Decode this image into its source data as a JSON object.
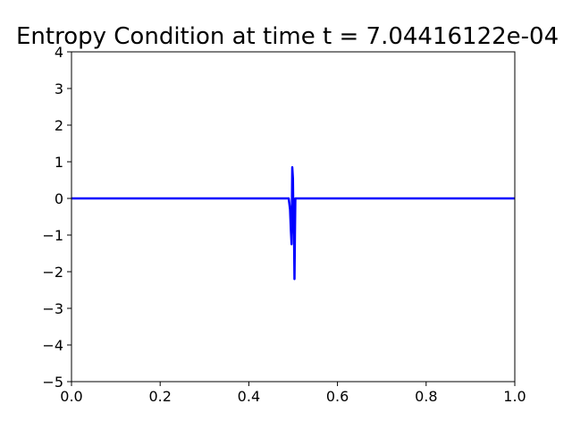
{
  "chart_data": {
    "type": "line",
    "title": "Entropy Condition at time t = 7.04416122e-04",
    "xlabel": "",
    "ylabel": "",
    "xlim": [
      0.0,
      1.0
    ],
    "ylim": [
      -5,
      4
    ],
    "x_ticks": [
      "0.0",
      "0.2",
      "0.4",
      "0.6",
      "0.8",
      "1.0"
    ],
    "x_tick_values": [
      0.0,
      0.2,
      0.4,
      0.6,
      0.8,
      1.0
    ],
    "y_ticks": [
      "4",
      "3",
      "2",
      "1",
      "0",
      "−1",
      "−2",
      "−3",
      "−4",
      "−5"
    ],
    "y_tick_values": [
      4,
      3,
      2,
      1,
      0,
      -1,
      -2,
      -3,
      -4,
      -5
    ],
    "grid": false,
    "series": [
      {
        "color": "#0000ff",
        "x": [
          0.0,
          0.49,
          0.493,
          0.495,
          0.4965,
          0.498,
          0.4995,
          0.5005,
          0.502,
          0.503,
          0.504,
          0.505,
          0.507,
          1.0
        ],
        "y": [
          0.0,
          0.0,
          -0.3,
          -0.9,
          -1.25,
          0.85,
          0.55,
          -0.5,
          -1.0,
          -2.2,
          -1.0,
          0.0,
          0.0,
          0.0
        ]
      }
    ]
  }
}
